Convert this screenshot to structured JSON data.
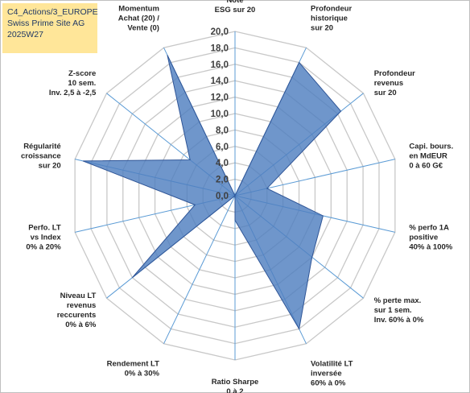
{
  "info_box": {
    "line1": "C4_Actions/3_EUROPE",
    "line2": "Swiss Prime Site AG",
    "line3": "2025W27"
  },
  "colors": {
    "fill": "#4f7fbf",
    "stroke": "#2f5597",
    "grid": "#c8c8c8",
    "spoke": "#5b9bd5",
    "info_bg": "#ffe699"
  },
  "chart_data": {
    "type": "radar",
    "rlim": [
      0,
      20
    ],
    "grid": true,
    "tick_labels": [
      "0,0",
      "2,0",
      "4,0",
      "6,0",
      "8,0",
      "10,0",
      "12,0",
      "14,0",
      "16,0",
      "18,0",
      "20,0"
    ],
    "axes": [
      [
        "Note",
        "ESG sur 20"
      ],
      [
        "Profondeur",
        "historique",
        "sur 20"
      ],
      [
        "Profondeur",
        "revenus",
        "sur 20"
      ],
      [
        "Capi. bours.",
        "en MdEUR",
        "0 à 60 G€"
      ],
      [
        "% perfo 1A",
        "positive",
        "40% à 100%"
      ],
      [
        "% perte max.",
        "sur 1 sem.",
        "Inv. 60% à 0%"
      ],
      [
        "Volatilité LT",
        "inversée",
        "60% à 0%"
      ],
      [
        "Ratio Sharpe",
        "0 à 2"
      ],
      [
        "Rendement LT",
        "0% à 30%"
      ],
      [
        "Niveau LT",
        "revenus",
        "reccurents",
        "0% à 6%"
      ],
      [
        "Perfo. LT",
        "vs Index",
        "0% à 20%"
      ],
      [
        "Régularité",
        "croissance",
        "sur 20"
      ],
      [
        "Z-score",
        "10 sem.",
        "Inv. 2,5 à -2,5"
      ],
      [
        "Momentum",
        "Achat (20) /",
        "Vente (0)"
      ]
    ],
    "values": [
      0,
      18,
      16.5,
      4,
      11,
      12,
      18,
      3,
      0,
      16,
      5,
      19,
      7,
      19
    ]
  }
}
